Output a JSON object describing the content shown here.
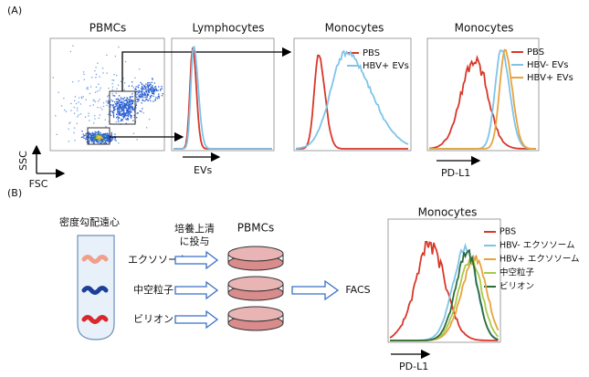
{
  "panel_a": {
    "label": "(A)",
    "plots": [
      {
        "title": "PBMCs",
        "y_axis": "SSC",
        "x_axis": "FSC"
      },
      {
        "title": "Lymphocytes",
        "x_axis": "EVs"
      },
      {
        "title": "Monocytes",
        "legend": [
          "PBS",
          "HBV+ EVs"
        ]
      },
      {
        "title": "Monocytes",
        "x_axis": "PD-L1",
        "legend": [
          "PBS",
          "HBV- EVs",
          "HBV+ EVs"
        ]
      }
    ]
  },
  "panel_b": {
    "label": "(B)",
    "centrifuge": "密度勾配遠心",
    "fractions": [
      "エクソソーム",
      "中空粒子",
      "ビリオン"
    ],
    "treatment": [
      "培養上清",
      "に投与"
    ],
    "cells": "PBMCs",
    "assay": "FACS",
    "plot": {
      "title": "Monocytes",
      "x_axis": "PD-L1",
      "legend": [
        "PBS",
        "HBV- エクソソーム",
        "HBV+ エクソソーム",
        "中空粒子",
        "ビリオン"
      ]
    }
  }
}
